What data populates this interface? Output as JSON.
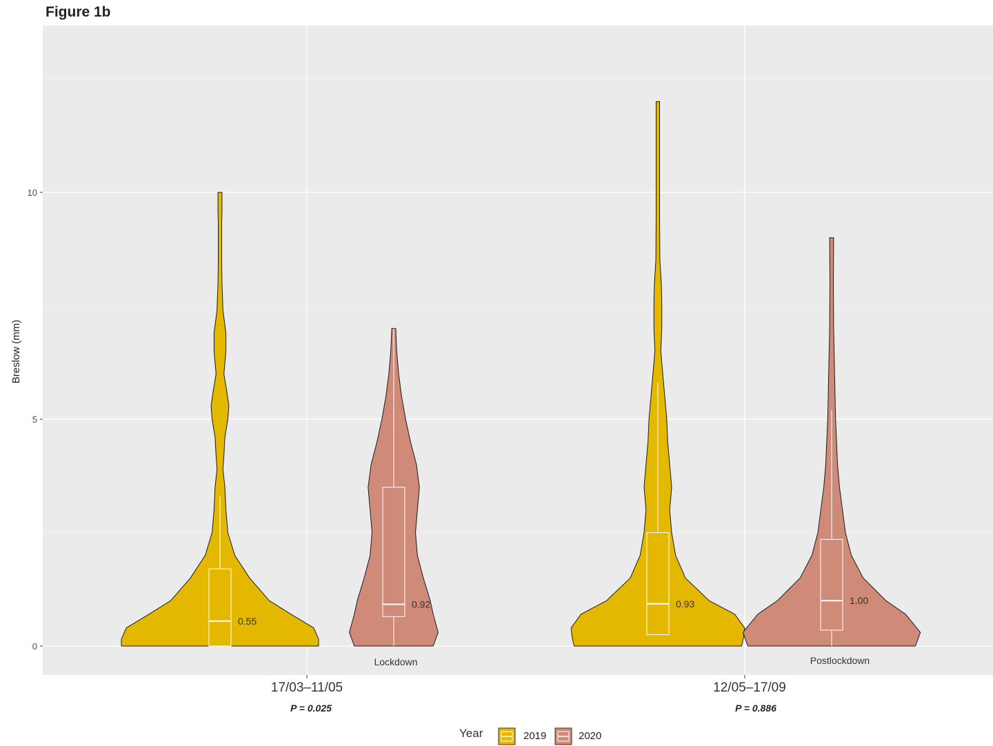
{
  "figure_title": "Figure 1b",
  "chart_data": {
    "type": "violin",
    "ylabel": "Breslow (mm)",
    "xlabel": "",
    "ylim": [
      -0.6,
      13.8
    ],
    "yticks": [
      0,
      5,
      10
    ],
    "grid": true,
    "legend_position": "bottom",
    "legend_title": "Year",
    "categories": [
      "17/03–11/05",
      "12/05–17/09"
    ],
    "period_labels": [
      "Lockdown",
      "Postlockdown"
    ],
    "p_values": [
      "P = 0.025",
      "P = 0.886"
    ],
    "colors": {
      "2019": "#E5B800",
      "2020": "#CF8A78",
      "background": "#EBEBEB",
      "grid": "#ffffff"
    },
    "series": [
      {
        "name": "2019",
        "violins": [
          {
            "category": "17/03–11/05",
            "min": 0,
            "q1": 0,
            "median": 0.55,
            "q3": 1.7,
            "max": 10.0,
            "whisker_high": 3.3,
            "median_label": "0.55",
            "profile": [
              [
                0,
                1.0
              ],
              [
                0.15,
                1.0
              ],
              [
                0.4,
                0.95
              ],
              [
                0.7,
                0.72
              ],
              [
                1.0,
                0.5
              ],
              [
                1.5,
                0.3
              ],
              [
                2.0,
                0.15
              ],
              [
                2.5,
                0.08
              ],
              [
                3.0,
                0.06
              ],
              [
                3.5,
                0.05
              ],
              [
                3.9,
                0.03
              ],
              [
                4.2,
                0.04
              ],
              [
                4.6,
                0.05
              ],
              [
                5.0,
                0.08
              ],
              [
                5.3,
                0.09
              ],
              [
                5.6,
                0.07
              ],
              [
                6.0,
                0.04
              ],
              [
                6.5,
                0.06
              ],
              [
                6.9,
                0.06
              ],
              [
                7.4,
                0.03
              ],
              [
                8.0,
                0.02
              ],
              [
                8.5,
                0.005
              ],
              [
                9.3,
                0.005
              ],
              [
                9.6,
                0.02
              ],
              [
                10.0,
                0.02
              ]
            ]
          },
          {
            "category": "12/05–17/09",
            "min": 0.25,
            "q1": 0.25,
            "median": 0.93,
            "q3": 2.5,
            "max": 12.0,
            "whisker_high": 5.8,
            "median_label": "0.93",
            "profile": [
              [
                0,
                0.85
              ],
              [
                0.2,
                0.87
              ],
              [
                0.4,
                0.88
              ],
              [
                0.7,
                0.78
              ],
              [
                1.0,
                0.52
              ],
              [
                1.5,
                0.28
              ],
              [
                2.0,
                0.18
              ],
              [
                2.5,
                0.14
              ],
              [
                3.0,
                0.12
              ],
              [
                3.5,
                0.14
              ],
              [
                4.0,
                0.12
              ],
              [
                4.5,
                0.1
              ],
              [
                5.0,
                0.09
              ],
              [
                5.5,
                0.07
              ],
              [
                6.0,
                0.05
              ],
              [
                6.5,
                0.03
              ],
              [
                7.0,
                0.04
              ],
              [
                7.6,
                0.04
              ],
              [
                8.0,
                0.035
              ],
              [
                8.5,
                0.02
              ],
              [
                9.5,
                0.015
              ],
              [
                10.2,
                0.005
              ],
              [
                11.5,
                0.005
              ],
              [
                12.0,
                0.01
              ]
            ]
          }
        ]
      },
      {
        "name": "2020",
        "violins": [
          {
            "category": "17/03–11/05",
            "min": 0,
            "q1": 0.65,
            "median": 0.92,
            "q3": 3.5,
            "max": 7.0,
            "whisker_high": 7.0,
            "median_label": "0.92",
            "profile": [
              [
                0,
                0.4
              ],
              [
                0.3,
                0.45
              ],
              [
                0.7,
                0.4
              ],
              [
                1.0,
                0.37
              ],
              [
                1.5,
                0.3
              ],
              [
                2.0,
                0.24
              ],
              [
                2.5,
                0.22
              ],
              [
                3.0,
                0.24
              ],
              [
                3.5,
                0.26
              ],
              [
                4.0,
                0.23
              ],
              [
                4.5,
                0.17
              ],
              [
                5.0,
                0.12
              ],
              [
                5.5,
                0.08
              ],
              [
                6.0,
                0.05
              ],
              [
                6.5,
                0.03
              ],
              [
                7.0,
                0.02
              ]
            ]
          },
          {
            "category": "12/05–17/09",
            "min": 0,
            "q1": 0.35,
            "median": 1.0,
            "q3": 2.35,
            "max": 9.0,
            "whisker_high": 5.2,
            "median_label": "1.00",
            "profile": [
              [
                0,
                0.85
              ],
              [
                0.3,
                0.9
              ],
              [
                0.7,
                0.75
              ],
              [
                1.0,
                0.55
              ],
              [
                1.5,
                0.32
              ],
              [
                2.0,
                0.2
              ],
              [
                2.5,
                0.14
              ],
              [
                3.0,
                0.11
              ],
              [
                3.5,
                0.08
              ],
              [
                4.0,
                0.06
              ],
              [
                5.0,
                0.04
              ],
              [
                6.0,
                0.03
              ],
              [
                7.0,
                0.02
              ],
              [
                8.0,
                0.015
              ],
              [
                9.0,
                0.02
              ]
            ]
          }
        ]
      }
    ]
  }
}
